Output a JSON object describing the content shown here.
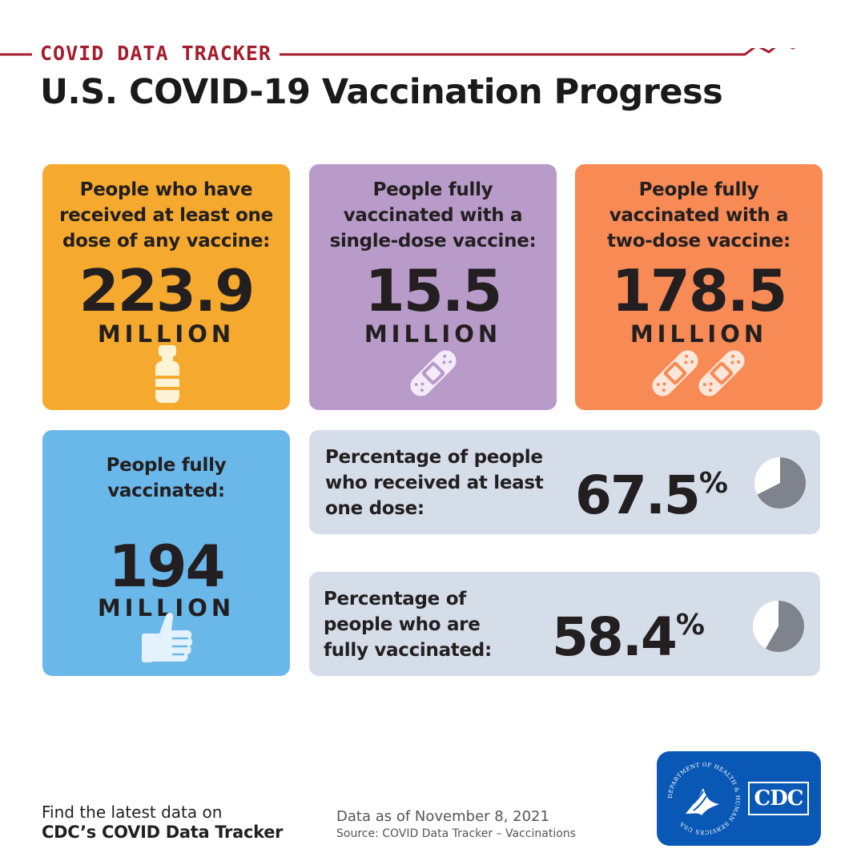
{
  "header": {
    "kicker": "COVID DATA TRACKER",
    "title": "U.S. COVID-19 Vaccination Progress",
    "accent_color": "#a51d2d"
  },
  "cards": {
    "at_least_one_dose": {
      "label_lines": [
        "People who have",
        "received at least one",
        "dose of any vaccine:"
      ],
      "number": "223.9",
      "unit": "MILLION",
      "icon": "vaccine-vial-icon",
      "color": "#f5a92e"
    },
    "single_dose": {
      "label_lines": [
        "People fully",
        "vaccinated with a",
        "single-dose vaccine:"
      ],
      "number": "15.5",
      "unit": "MILLION",
      "icon": "bandage-icon",
      "color": "#b89bc9"
    },
    "two_dose": {
      "label_lines": [
        "People fully",
        "vaccinated with a",
        "two-dose vaccine:"
      ],
      "number": "178.5",
      "unit": "MILLION",
      "icon": "two-bandages-icon",
      "color": "#f78a55"
    },
    "fully_vaccinated": {
      "label_lines": [
        "People fully",
        "vaccinated:"
      ],
      "number": "194",
      "unit": "MILLION",
      "icon": "thumbs-up-icon",
      "color": "#6ab8ea"
    }
  },
  "percentages": {
    "at_least_one_dose": {
      "label_lines": [
        "Percentage of people",
        "who received at least",
        "one dose:"
      ],
      "value": "67.5",
      "symbol": "%",
      "fraction": 0.675,
      "icon": "pie-chart-icon"
    },
    "fully_vaccinated": {
      "label_lines": [
        "Percentage of",
        "people who are",
        "fully vaccinated:"
      ],
      "value": "58.4",
      "symbol": "%",
      "fraction": 0.584,
      "icon": "pie-chart-icon"
    },
    "panel_color": "#d5dde8",
    "pie_fill_color": "#7f848c"
  },
  "footer": {
    "cta_line1": "Find the latest data on",
    "cta_line2": "CDC’s COVID Data Tracker",
    "data_date": "Data as of November 8, 2021",
    "source": "Source: COVID Data Tracker – Vaccinations",
    "logo": {
      "cdc_text": "CDC",
      "hhs_seal_text": "DEPARTMENT OF HEALTH & HUMAN SERVICES USA",
      "color": "#0a58b5"
    }
  }
}
